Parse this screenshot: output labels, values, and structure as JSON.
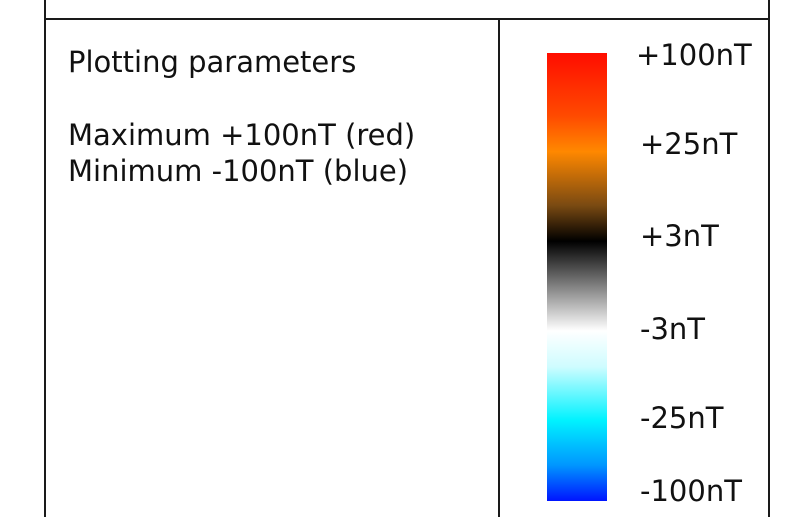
{
  "params": {
    "title": "Plotting parameters",
    "max_line": "Maximum +100nT (red)",
    "min_line": "Minimum -100nT (blue)"
  },
  "colorbar": {
    "labels": [
      "+100nT",
      "+25nT",
      "+3nT",
      "-3nT",
      "-25nT",
      "-100nT"
    ],
    "stops": [
      {
        "offset": 0.0,
        "color": "#ff0d00"
      },
      {
        "offset": 0.14,
        "color": "#ff4a00"
      },
      {
        "offset": 0.22,
        "color": "#ff8800"
      },
      {
        "offset": 0.34,
        "color": "#7a4a12"
      },
      {
        "offset": 0.42,
        "color": "#000000"
      },
      {
        "offset": 0.54,
        "color": "#9a9a9a"
      },
      {
        "offset": 0.62,
        "color": "#ffffff"
      },
      {
        "offset": 0.7,
        "color": "#cffcff"
      },
      {
        "offset": 0.82,
        "color": "#00f2ff"
      },
      {
        "offset": 0.92,
        "color": "#0096ff"
      },
      {
        "offset": 1.0,
        "color": "#0014ff"
      }
    ]
  }
}
